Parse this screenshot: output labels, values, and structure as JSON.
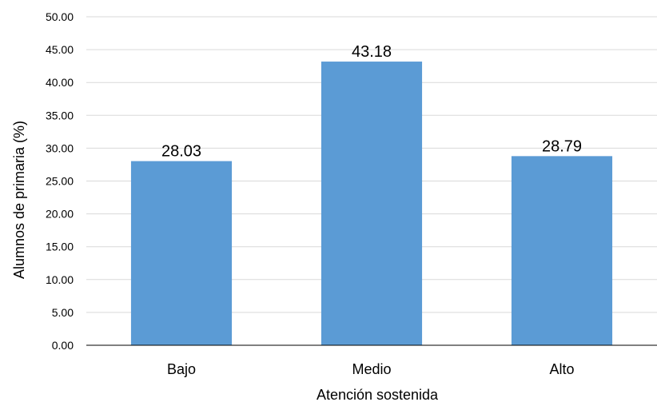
{
  "chart_data": {
    "type": "bar",
    "title": "",
    "xlabel": "Atención sostenida",
    "ylabel": "Alumnos de primaria  (%)",
    "categories": [
      "Bajo",
      "Medio",
      "Alto"
    ],
    "values": [
      28.03,
      43.18,
      28.79
    ],
    "value_labels": [
      "28.03",
      "43.18",
      "28.79"
    ],
    "ylim": [
      0,
      50
    ],
    "yticks": [
      "0.00",
      "5.00",
      "10.00",
      "15.00",
      "20.00",
      "25.00",
      "30.00",
      "35.00",
      "40.00",
      "45.00",
      "50.00"
    ],
    "grid": true,
    "legend": "none",
    "bar_color": "#5b9bd5"
  }
}
